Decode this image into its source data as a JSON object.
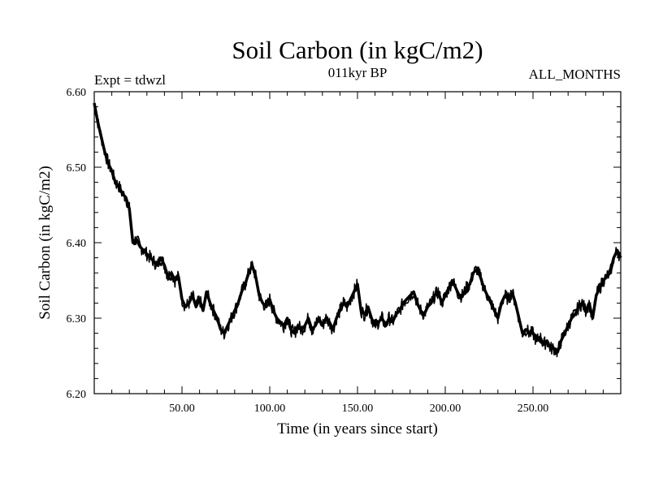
{
  "chart_data": {
    "type": "line",
    "title": "Soil Carbon (in kgC/m2)",
    "subtitle": "011kyr BP",
    "annotation_left": "Expt = tdwzl",
    "annotation_right": "ALL_MONTHS",
    "xlabel": "Time (in years since start)",
    "ylabel": "Soil Carbon (in kgC/m2)",
    "xlim": [
      0,
      300
    ],
    "ylim": [
      6.2,
      6.6
    ],
    "xticks": [
      50,
      100,
      150,
      200,
      250
    ],
    "xtick_labels": [
      "50.00",
      "100.00",
      "150.00",
      "200.00",
      "250.00"
    ],
    "yticks": [
      6.2,
      6.3,
      6.4,
      6.5,
      6.6
    ],
    "ytick_labels": [
      "6.20",
      "6.30",
      "6.40",
      "6.50",
      "6.60"
    ],
    "grid": false,
    "series": [
      {
        "color": "#000000",
        "x": [
          0,
          2,
          4,
          6,
          8,
          10,
          12,
          14,
          16,
          18,
          20,
          22,
          24,
          26,
          28,
          30,
          32,
          34,
          36,
          38,
          40,
          42,
          44,
          46,
          48,
          50,
          52,
          54,
          56,
          58,
          60,
          62,
          64,
          66,
          68,
          70,
          72,
          74,
          76,
          78,
          80,
          82,
          84,
          86,
          88,
          90,
          92,
          94,
          96,
          98,
          100,
          102,
          104,
          106,
          108,
          110,
          112,
          114,
          116,
          118,
          120,
          122,
          124,
          126,
          128,
          130,
          132,
          134,
          136,
          138,
          140,
          142,
          144,
          146,
          148,
          150,
          152,
          154,
          156,
          158,
          160,
          162,
          164,
          166,
          168,
          170,
          172,
          174,
          176,
          178,
          180,
          182,
          184,
          186,
          188,
          190,
          192,
          194,
          196,
          198,
          200,
          202,
          204,
          206,
          208,
          210,
          212,
          214,
          216,
          218,
          220,
          222,
          224,
          226,
          228,
          230,
          232,
          234,
          236,
          238,
          240,
          242,
          244,
          246,
          248,
          250,
          252,
          254,
          256,
          258,
          260,
          262,
          264,
          266,
          268,
          270,
          272,
          274,
          276,
          278,
          280,
          282,
          284,
          286,
          288,
          290,
          292,
          294,
          296,
          298,
          300
        ],
        "y": [
          6.585,
          6.56,
          6.54,
          6.52,
          6.505,
          6.495,
          6.48,
          6.475,
          6.465,
          6.46,
          6.445,
          6.4,
          6.405,
          6.395,
          6.39,
          6.385,
          6.38,
          6.375,
          6.37,
          6.38,
          6.37,
          6.355,
          6.36,
          6.35,
          6.355,
          6.325,
          6.315,
          6.32,
          6.33,
          6.315,
          6.325,
          6.31,
          6.335,
          6.32,
          6.31,
          6.3,
          6.285,
          6.28,
          6.29,
          6.3,
          6.31,
          6.32,
          6.335,
          6.345,
          6.36,
          6.37,
          6.355,
          6.33,
          6.32,
          6.315,
          6.325,
          6.31,
          6.3,
          6.295,
          6.29,
          6.3,
          6.285,
          6.28,
          6.29,
          6.285,
          6.29,
          6.3,
          6.285,
          6.29,
          6.3,
          6.29,
          6.3,
          6.295,
          6.285,
          6.3,
          6.31,
          6.32,
          6.315,
          6.325,
          6.335,
          6.345,
          6.31,
          6.305,
          6.315,
          6.3,
          6.29,
          6.295,
          6.3,
          6.29,
          6.3,
          6.295,
          6.305,
          6.31,
          6.32,
          6.325,
          6.33,
          6.335,
          6.32,
          6.31,
          6.305,
          6.315,
          6.32,
          6.33,
          6.335,
          6.32,
          6.33,
          6.34,
          6.35,
          6.34,
          6.33,
          6.33,
          6.34,
          6.345,
          6.36,
          6.365,
          6.355,
          6.34,
          6.33,
          6.32,
          6.31,
          6.3,
          6.32,
          6.33,
          6.325,
          6.335,
          6.32,
          6.3,
          6.28,
          6.285,
          6.28,
          6.28,
          6.27,
          6.275,
          6.265,
          6.27,
          6.26,
          6.26,
          6.255,
          6.27,
          6.28,
          6.29,
          6.3,
          6.305,
          6.315,
          6.32,
          6.31,
          6.32,
          6.3,
          6.33,
          6.34,
          6.35,
          6.355,
          6.36,
          6.38,
          6.39,
          6.38
        ]
      }
    ]
  }
}
